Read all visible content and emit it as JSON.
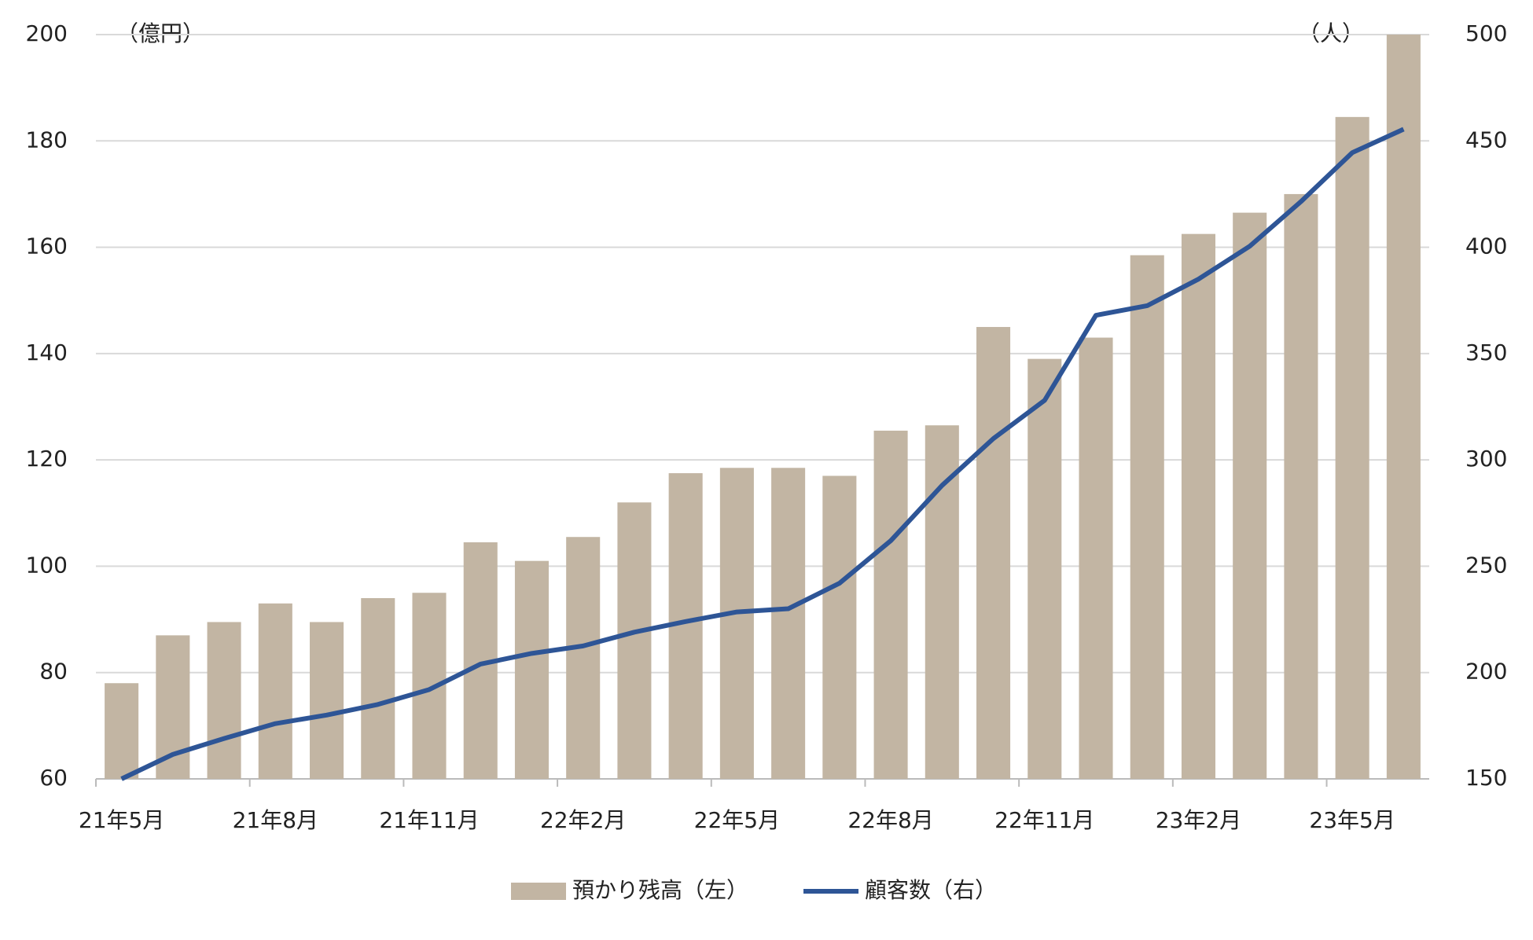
{
  "chart_data": {
    "type": "bar+line",
    "y_unit_label": "（億円）",
    "y2_unit_label": "（人）",
    "categories": [
      "21年5月",
      null,
      null,
      "21年8月",
      null,
      null,
      "21年11月",
      null,
      null,
      "22年2月",
      null,
      null,
      "22年5月",
      null,
      null,
      "22年8月",
      null,
      null,
      "22年11月",
      null,
      null,
      "23年2月",
      null,
      null,
      "23年5月",
      null
    ],
    "series": [
      {
        "name": "預かり残高（左）",
        "type": "bar",
        "axis": "y",
        "color": "#c2b5a3",
        "values": [
          78,
          87,
          89.5,
          93,
          89.5,
          94,
          95,
          104.5,
          101,
          105.5,
          112,
          117.5,
          118.5,
          118.5,
          117,
          125.5,
          126.5,
          145,
          139,
          143,
          158.5,
          162.5,
          166.5,
          170,
          184.5,
          200
        ]
      },
      {
        "name": "顧客数（右）",
        "type": "line",
        "axis": "y2",
        "color": "#2e5596",
        "values": [
          150,
          161.5,
          169,
          176,
          180,
          185,
          192,
          204,
          209,
          212.5,
          219,
          224,
          228.5,
          230,
          242,
          262,
          288,
          310,
          328,
          368,
          372.5,
          385,
          400.5,
          421.5,
          444.5,
          455.5
        ]
      }
    ],
    "ylim": [
      60,
      200
    ],
    "yticks": [
      60,
      80,
      100,
      120,
      140,
      160,
      180,
      200
    ],
    "y2lim": [
      150,
      500
    ],
    "y2ticks": [
      150,
      200,
      250,
      300,
      350,
      400,
      450,
      500
    ],
    "grid": true,
    "legend": "bottom"
  }
}
